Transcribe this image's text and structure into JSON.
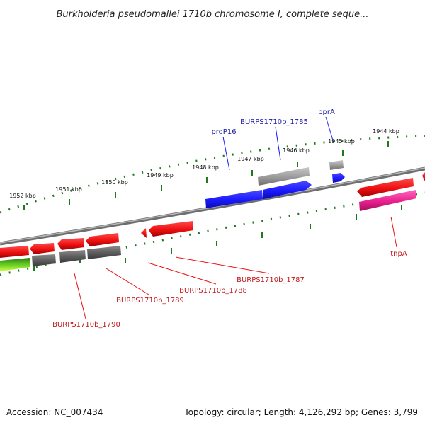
{
  "title": "Burkholderia pseudomallei 1710b chromosome I, complete seque...",
  "footer": {
    "accession": "Accession: NC_007434",
    "stats": "Topology: circular; Length: 4,126,292 bp; Genes: 3,799"
  },
  "ticks": [
    "1952 kbp",
    "1951 kbp",
    "1950 kbp",
    "1949 kbp",
    "1948 kbp",
    "1947 kbp",
    "1946 kbp",
    "1945 kbp",
    "1944 kbp"
  ],
  "gene_labels": {
    "forward": [
      "proP16",
      "BURPS1710b_1785",
      "bprA"
    ],
    "reverse": [
      "tnpA",
      "BURPS1710b_1787",
      "BURPS1710b_1788",
      "BURPS1710b_1789",
      "BURPS1710b_1790"
    ]
  },
  "colors": {
    "backbone": "#7a7a7a",
    "forward_cds": "#1a1aff",
    "reverse_cds": "#ee1111",
    "gray_feature": "#9a9a9a",
    "pink_feature": "#e8208e",
    "green_feature": "#55bb22",
    "tick_green": "#1f7a1f",
    "label_blue": "#1a1aa6",
    "label_red": "#c0171a"
  }
}
